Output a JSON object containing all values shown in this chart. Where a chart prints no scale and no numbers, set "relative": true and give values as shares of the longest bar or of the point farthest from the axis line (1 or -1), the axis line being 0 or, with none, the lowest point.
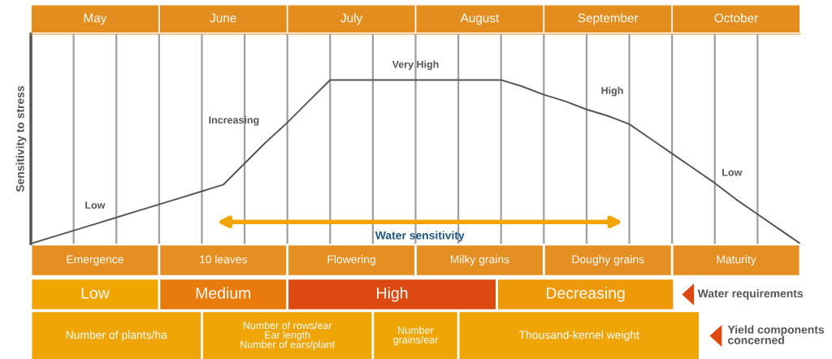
{
  "chart_data": {
    "type": "line",
    "relative": true,
    "ylabel": "Sensitivity to stress",
    "categories": [
      null,
      null,
      null,
      null,
      null,
      null,
      null,
      null,
      null,
      null,
      null,
      null,
      null,
      null,
      null,
      null,
      null,
      null,
      null,
      null,
      null,
      null,
      null,
      null,
      null,
      null,
      null,
      null,
      null,
      null,
      null,
      null,
      null,
      null,
      null,
      null,
      null
    ],
    "grid": "x",
    "series": [
      {
        "color": "#555555",
        "values": [
          0,
          0.04,
          0.08,
          0.12,
          0.16,
          0.2,
          0.24,
          0.28,
          0.32,
          0.36,
          0.49,
          0.62,
          0.74,
          0.87,
          1,
          1,
          1,
          1,
          1,
          1,
          1,
          1,
          1,
          0.96,
          0.91,
          0.87,
          0.82,
          0.78,
          0.73,
          0.64,
          0.55,
          0.46,
          0.37,
          0.27,
          0.18,
          0.09,
          0
        ]
      }
    ],
    "line_style": "solid",
    "annotations": [
      "May",
      "June",
      "July",
      "August",
      "September",
      "October",
      "Low",
      "Increasing",
      "Very High",
      "High",
      "Low",
      "Water sensitivity",
      "Emergence",
      "10 leaves",
      "Flowering",
      "Milky grains",
      "Doughy grains",
      "Maturity",
      "Low",
      "Medium",
      "High",
      "Decreasing",
      "Water requirements",
      "Number of plants/ha",
      "Number of rows/ear\nEar length\nNumber of ears/plant",
      "Number\ngrains/ear",
      "Thousand-kernel weight",
      "Yield components\nconcerned"
    ]
  }
}
